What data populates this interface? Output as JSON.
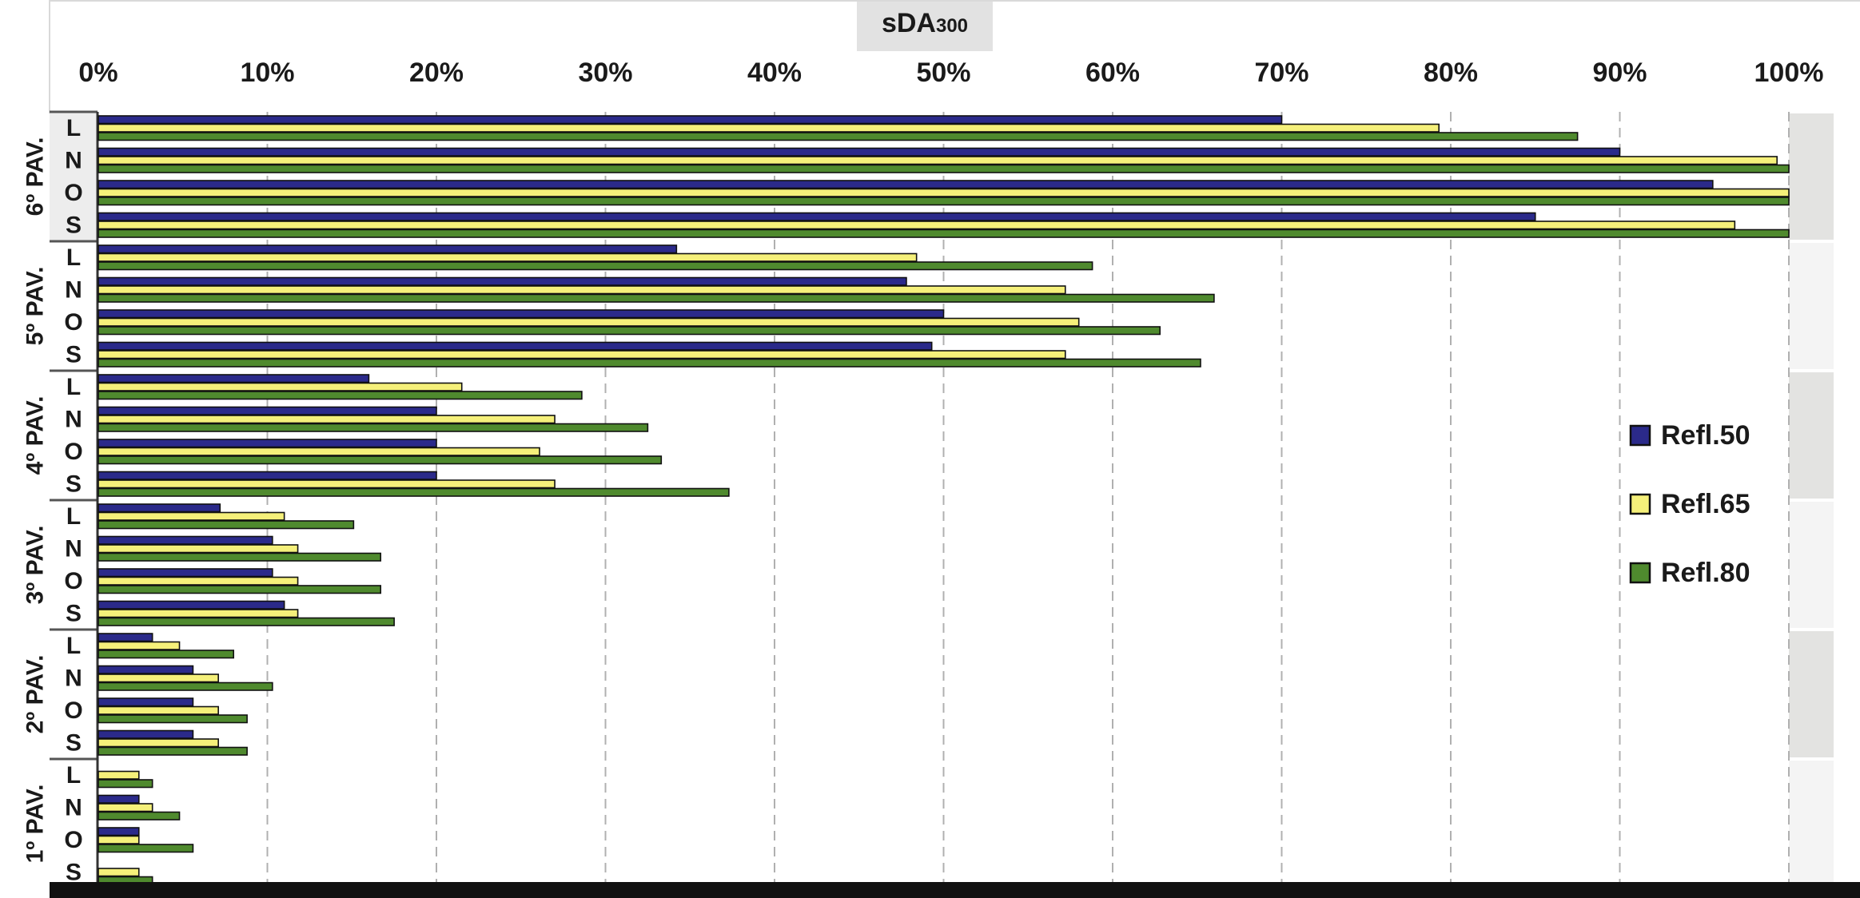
{
  "chart_data": {
    "type": "bar",
    "orientation": "horizontal",
    "title": "sDA",
    "title_subscript": "300",
    "x_ticks": [
      "0%",
      "10%",
      "20%",
      "30%",
      "40%",
      "50%",
      "60%",
      "70%",
      "80%",
      "90%",
      "100%"
    ],
    "xlim": [
      0,
      100
    ],
    "grid": "vertical dashed",
    "legend_position": "right",
    "groups": [
      {
        "label": "6º PAV.",
        "categories": [
          "L",
          "N",
          "O",
          "S"
        ]
      },
      {
        "label": "5º PAV.",
        "categories": [
          "L",
          "N",
          "O",
          "S"
        ]
      },
      {
        "label": "4º PAV.",
        "categories": [
          "L",
          "N",
          "O",
          "S"
        ]
      },
      {
        "label": "3º PAV.",
        "categories": [
          "L",
          "N",
          "O",
          "S"
        ]
      },
      {
        "label": "2º PAV.",
        "categories": [
          "L",
          "N",
          "O",
          "S"
        ]
      },
      {
        "label": "1º PAV.",
        "categories": [
          "L",
          "N",
          "O",
          "S"
        ]
      }
    ],
    "series": [
      {
        "name": "Refl.50",
        "color": "#2b2a8a",
        "values": [
          70,
          90,
          95.5,
          85,
          34.2,
          47.8,
          50,
          49.3,
          16,
          20,
          20,
          20,
          7.2,
          10.3,
          10.3,
          11,
          3.2,
          5.6,
          5.6,
          5.6,
          0,
          2.4,
          2.4,
          0
        ]
      },
      {
        "name": "Refl.65",
        "color": "#f5f07a",
        "values": [
          79.3,
          99.3,
          100,
          96.8,
          48.4,
          57.2,
          58,
          57.2,
          21.5,
          27,
          26.1,
          27,
          11,
          11.8,
          11.8,
          11.8,
          4.8,
          7.1,
          7.1,
          7.1,
          2.4,
          3.2,
          2.4,
          2.4
        ]
      },
      {
        "name": "Refl.80",
        "color": "#4f8a2e",
        "values": [
          87.5,
          100,
          100,
          100,
          58.8,
          66,
          62.8,
          65.2,
          28.6,
          32.5,
          33.3,
          37.3,
          15.1,
          16.7,
          16.7,
          17.5,
          8,
          10.3,
          8.8,
          8.8,
          3.2,
          4.8,
          5.6,
          3.2
        ]
      }
    ]
  }
}
